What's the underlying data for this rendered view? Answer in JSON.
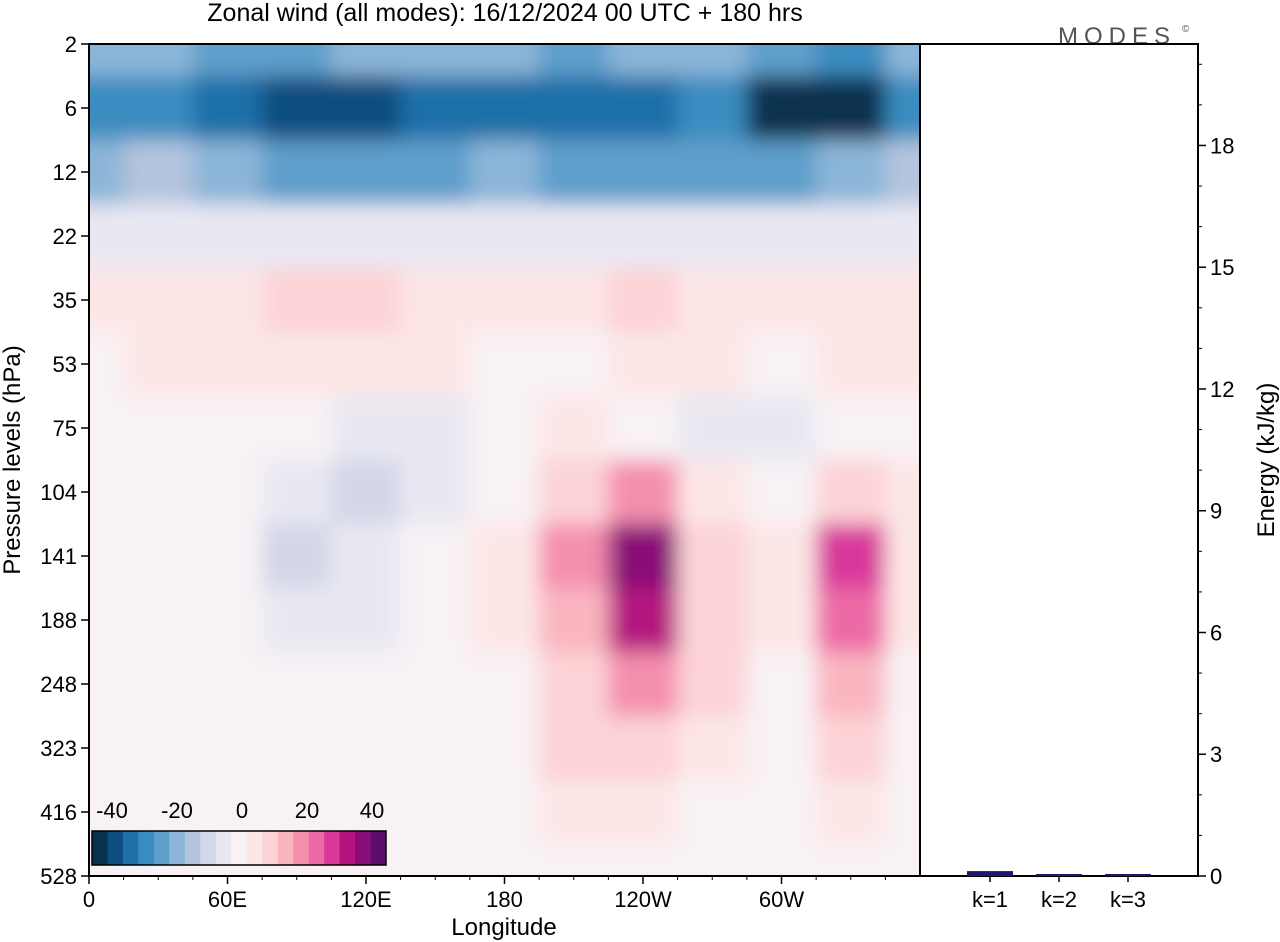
{
  "chart_data": [
    {
      "type": "heatmap",
      "title": "Zonal wind (all modes):  16/12/2024  00 UTC  + 180 hrs",
      "xlabel": "Longitude",
      "ylabel": "Pressure levels (hPa)",
      "x_ticks": [
        "0",
        "60E",
        "120E",
        "180",
        "120W",
        "60W"
      ],
      "y_ticks": [
        "2",
        "6",
        "12",
        "22",
        "35",
        "53",
        "75",
        "104",
        "141",
        "188",
        "248",
        "323",
        "416",
        "528"
      ],
      "y_scale": "log",
      "colorbar": {
        "labels": [
          "-40",
          "-20",
          "0",
          "20",
          "40"
        ],
        "range": [
          -40,
          40
        ],
        "placement": "bottom-left inset",
        "colors": [
          "#08304f",
          "#0b4e7f",
          "#1f6fa8",
          "#3a8cc0",
          "#5e9fcb",
          "#8bb5d8",
          "#b3c4de",
          "#d3d7e8",
          "#e9e8f2",
          "#f8f2f5",
          "#fde6e6",
          "#fcd3d6",
          "#f9b5c0",
          "#f48fae",
          "#ec6aa6",
          "#d9399b",
          "#b5127f",
          "#8a0d78",
          "#5e0d6c"
        ]
      },
      "contour_values": {
        "description": "approximate zonal wind (m/s) at sampled longitudes and pressure levels",
        "longitudes": [
          "0",
          "30E",
          "60E",
          "90E",
          "120E",
          "150E",
          "180",
          "150W",
          "120W",
          "90W",
          "60W",
          "30W",
          "0"
        ],
        "levels": [
          "2",
          "6",
          "12",
          "22",
          "35",
          "53",
          "75",
          "104",
          "141",
          "188",
          "248",
          "323",
          "416",
          "528"
        ],
        "values": [
          [
            -18,
            -16,
            -20,
            -22,
            -18,
            -16,
            -18,
            -20,
            -16,
            -16,
            -22,
            -24,
            -18
          ],
          [
            -26,
            -24,
            -28,
            -32,
            -34,
            -30,
            -28,
            -30,
            -28,
            -26,
            -36,
            -38,
            -26
          ],
          [
            -16,
            -14,
            -18,
            -20,
            -22,
            -20,
            -18,
            -20,
            -22,
            -20,
            -22,
            -18,
            -14
          ],
          [
            -4,
            -4,
            -6,
            -6,
            -6,
            -4,
            -4,
            -4,
            -4,
            -4,
            -4,
            -4,
            -4
          ],
          [
            4,
            6,
            6,
            8,
            8,
            6,
            4,
            6,
            8,
            6,
            4,
            6,
            6
          ],
          [
            2,
            4,
            6,
            6,
            6,
            4,
            2,
            2,
            4,
            4,
            2,
            4,
            4
          ],
          [
            -2,
            0,
            2,
            -2,
            -4,
            -4,
            2,
            4,
            2,
            -4,
            -6,
            -2,
            -2
          ],
          [
            0,
            -2,
            0,
            -6,
            -8,
            -4,
            2,
            10,
            18,
            4,
            2,
            8,
            4
          ],
          [
            2,
            -2,
            -2,
            -8,
            -6,
            -2,
            4,
            16,
            34,
            8,
            4,
            26,
            6
          ],
          [
            2,
            -2,
            -2,
            -6,
            -4,
            -2,
            4,
            14,
            30,
            10,
            4,
            22,
            4
          ],
          [
            0,
            2,
            0,
            -2,
            -2,
            -2,
            2,
            10,
            16,
            8,
            2,
            14,
            2
          ],
          [
            0,
            2,
            0,
            0,
            -2,
            -2,
            2,
            8,
            10,
            4,
            0,
            8,
            0
          ],
          [
            0,
            0,
            0,
            0,
            -2,
            -2,
            2,
            4,
            6,
            2,
            0,
            4,
            0
          ],
          [
            -2,
            0,
            0,
            0,
            -2,
            -2,
            0,
            2,
            2,
            0,
            -2,
            0,
            -2
          ]
        ]
      }
    },
    {
      "type": "bar",
      "categories": [
        "k=1",
        "k=2",
        "k=3"
      ],
      "values": [
        0.12,
        0.05,
        0.05
      ],
      "ylabel": "Energy (kJ/kg)",
      "ylim": [
        0,
        20.5
      ],
      "y_ticks": [
        "0",
        "3",
        "6",
        "9",
        "12",
        "15",
        "18"
      ],
      "bar_color": "#1a1a6e"
    }
  ],
  "logo_text": "MODES",
  "logo_mark": "©"
}
